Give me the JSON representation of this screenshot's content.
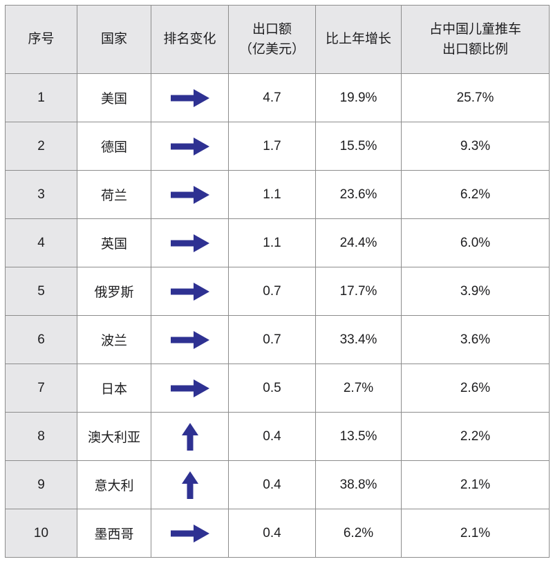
{
  "chart_data": {
    "type": "table",
    "title": "",
    "columns": [
      {
        "key": "no",
        "label": "序号"
      },
      {
        "key": "country",
        "label": "国家"
      },
      {
        "key": "change",
        "label": "排名变化"
      },
      {
        "key": "export",
        "label": "出口额\n（亿美元）"
      },
      {
        "key": "growth",
        "label": "比上年增长"
      },
      {
        "key": "share",
        "label": "占中国儿童推车\n出口额比例"
      }
    ],
    "rows": [
      {
        "no": "1",
        "country": "美国",
        "change": "right",
        "export": "4.7",
        "growth": "19.9%",
        "share": "25.7%"
      },
      {
        "no": "2",
        "country": "德国",
        "change": "right",
        "export": "1.7",
        "growth": "15.5%",
        "share": "9.3%"
      },
      {
        "no": "3",
        "country": "荷兰",
        "change": "right",
        "export": "1.1",
        "growth": "23.6%",
        "share": "6.2%"
      },
      {
        "no": "4",
        "country": "英国",
        "change": "right",
        "export": "1.1",
        "growth": "24.4%",
        "share": "6.0%"
      },
      {
        "no": "5",
        "country": "俄罗斯",
        "change": "right",
        "export": "0.7",
        "growth": "17.7%",
        "share": "3.9%"
      },
      {
        "no": "6",
        "country": "波兰",
        "change": "right",
        "export": "0.7",
        "growth": "33.4%",
        "share": "3.6%"
      },
      {
        "no": "7",
        "country": "日本",
        "change": "right",
        "export": "0.5",
        "growth": "2.7%",
        "share": "2.6%"
      },
      {
        "no": "8",
        "country": "澳大利亚",
        "change": "up",
        "export": "0.4",
        "growth": "13.5%",
        "share": "2.2%"
      },
      {
        "no": "9",
        "country": "意大利",
        "change": "up",
        "export": "0.4",
        "growth": "38.8%",
        "share": "2.1%"
      },
      {
        "no": "10",
        "country": "墨西哥",
        "change": "right",
        "export": "0.4",
        "growth": "6.2%",
        "share": "2.1%"
      }
    ]
  },
  "icons": {
    "right": "right-arrow-icon",
    "up": "up-arrow-icon"
  },
  "colors": {
    "arrow": "#2e3192",
    "header_bg": "#e7e7e9",
    "index_column_bg": "#e7e7e9",
    "border": "#8c8c8c",
    "text": "#1d1d1f",
    "cell_bg": "#ffffff"
  }
}
